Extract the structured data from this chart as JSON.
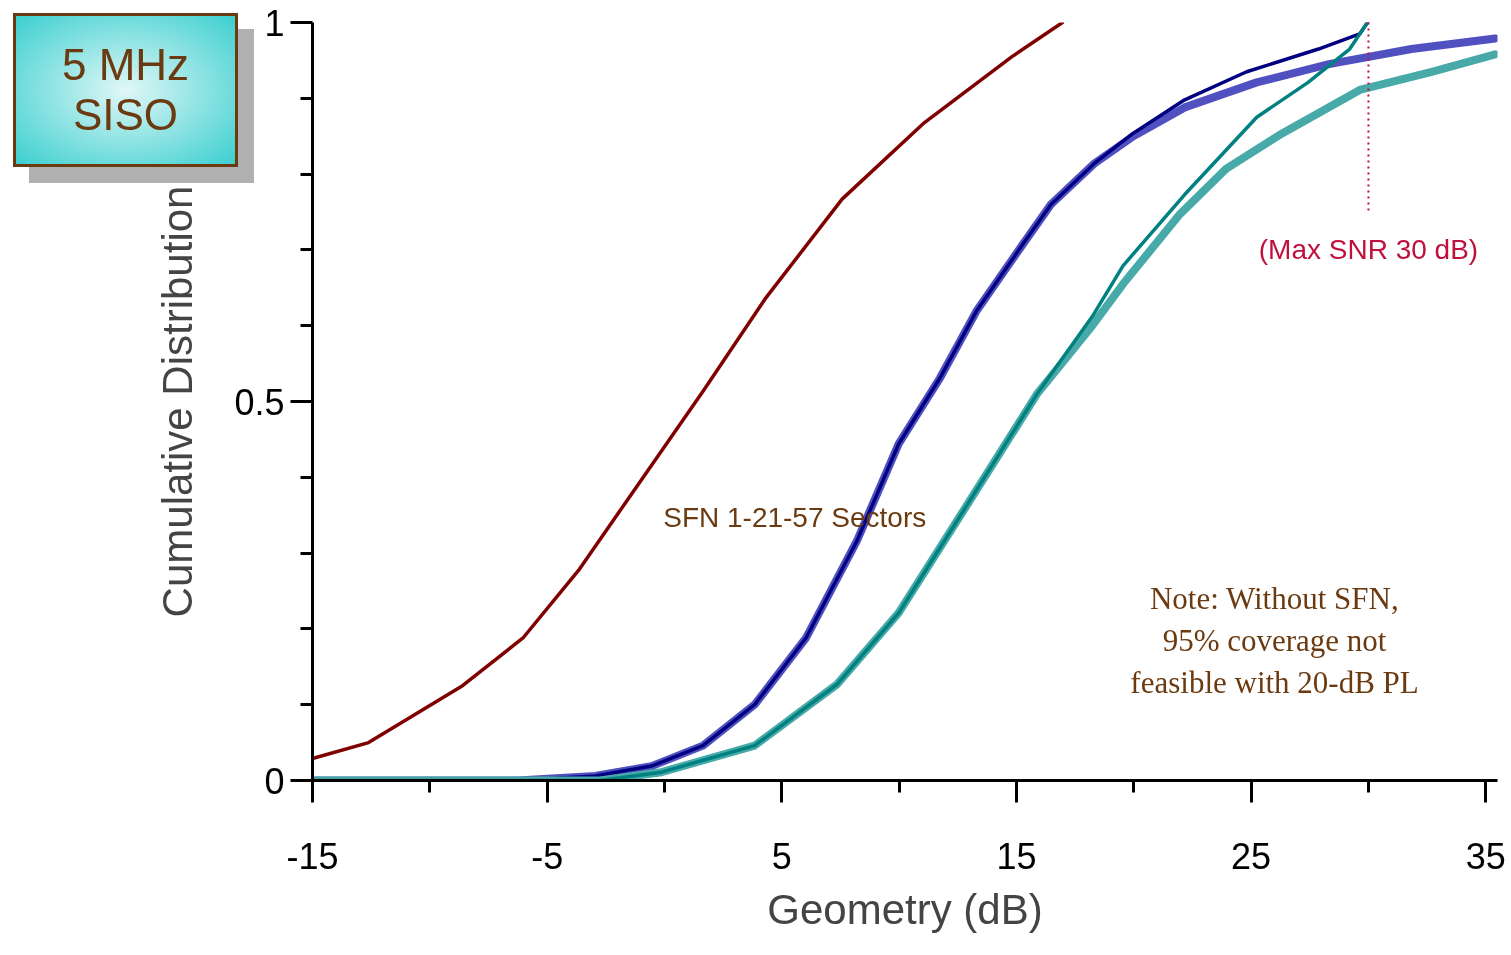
{
  "chart_data": {
    "type": "line",
    "title": "5 MHz SISO",
    "xlabel": "Geometry (dB)",
    "ylabel": "Cumulative Distribution",
    "xlim": [
      -15,
      35.5
    ],
    "ylim": [
      0,
      1
    ],
    "xticks": [
      -15,
      {
        "value": -10,
        "label": null
      },
      -5,
      {
        "value": 0,
        "label": null
      },
      5,
      {
        "value": 10,
        "label": null
      },
      15,
      {
        "value": 20,
        "label": null
      },
      25,
      {
        "value": 30,
        "label": null
      },
      35
    ],
    "yticks": [
      0,
      {
        "value": 0.1,
        "label": null
      },
      {
        "value": 0.2,
        "label": null
      },
      {
        "value": 0.3,
        "label": null
      },
      {
        "value": 0.4,
        "label": null
      },
      0.5,
      {
        "value": 0.6,
        "label": null
      },
      {
        "value": 0.7,
        "label": null
      },
      {
        "value": 0.8,
        "label": null
      },
      {
        "value": 0.9,
        "label": null
      },
      1
    ],
    "grid": false,
    "annotations": [
      "SFN 1-21-57 Sectors",
      "Note: Without SFN,\n95% coverage not\nfeasible with 20-dB PL"
    ],
    "ref_lines": [
      {
        "axis": "x",
        "value": 30,
        "label": "(Max SNR 30 dB)",
        "color": "#c0103c",
        "line_style": "dotted"
      }
    ],
    "series": [
      {
        "color": "#800000",
        "x": [
          -15,
          -12.61,
          -8.66,
          -6.03,
          -3.62,
          -0.55,
          1.65,
          4.28,
          7.57,
          11.08,
          14.81,
          16.96
        ],
        "values": [
          0.029,
          0.05,
          0.124,
          0.188,
          0.279,
          0.416,
          0.514,
          0.635,
          0.767,
          0.868,
          0.955,
          1.0
        ]
      },
      {
        "color": "#5050c0",
        "x": [
          -15,
          -6.25,
          -2.96,
          -0.55,
          1.64,
          3.84,
          6.03,
          8.2,
          9.98,
          11.74,
          13.29,
          15.24,
          16.47,
          18.32,
          19.98,
          22.17,
          25.24,
          28.32,
          31.83,
          35.4
        ],
        "values": [
          0,
          0,
          0.006,
          0.019,
          0.046,
          0.1,
          0.188,
          0.316,
          0.444,
          0.531,
          0.619,
          0.706,
          0.76,
          0.814,
          0.85,
          0.888,
          0.921,
          0.945,
          0.965,
          0.979
        ]
      },
      {
        "color": "#000080",
        "x": [
          -15,
          -6.25,
          -2.96,
          -0.55,
          1.64,
          3.84,
          6.03,
          8.2,
          9.98,
          11.74,
          13.29,
          15.24,
          16.47,
          18.32,
          19.98,
          22.17,
          24.81,
          27.87,
          29.63,
          29.96
        ],
        "values": [
          0,
          0,
          0.006,
          0.019,
          0.046,
          0.1,
          0.188,
          0.316,
          0.444,
          0.531,
          0.619,
          0.706,
          0.76,
          0.814,
          0.854,
          0.898,
          0.935,
          0.965,
          0.985,
          1.0
        ]
      },
      {
        "color": "#48aaa8",
        "x": [
          -15,
          -2.75,
          -0.13,
          3.84,
          7.36,
          9.98,
          12.6,
          15.9,
          18.23,
          19.54,
          21.96,
          23.93,
          26.34,
          29.63,
          32.7,
          35.4
        ],
        "values": [
          0,
          0,
          0.011,
          0.046,
          0.127,
          0.221,
          0.349,
          0.511,
          0.6,
          0.655,
          0.747,
          0.807,
          0.854,
          0.911,
          0.935,
          0.958
        ]
      },
      {
        "color": "#008080",
        "x": [
          -15,
          -2.75,
          -0.13,
          3.84,
          7.36,
          9.98,
          12.6,
          15.9,
          18.23,
          19.54,
          22.17,
          25.24,
          27.43,
          29.2,
          29.96
        ],
        "values": [
          0,
          0,
          0.011,
          0.046,
          0.127,
          0.221,
          0.349,
          0.511,
          0.612,
          0.679,
          0.773,
          0.875,
          0.921,
          0.965,
          1.0
        ]
      }
    ]
  }
}
